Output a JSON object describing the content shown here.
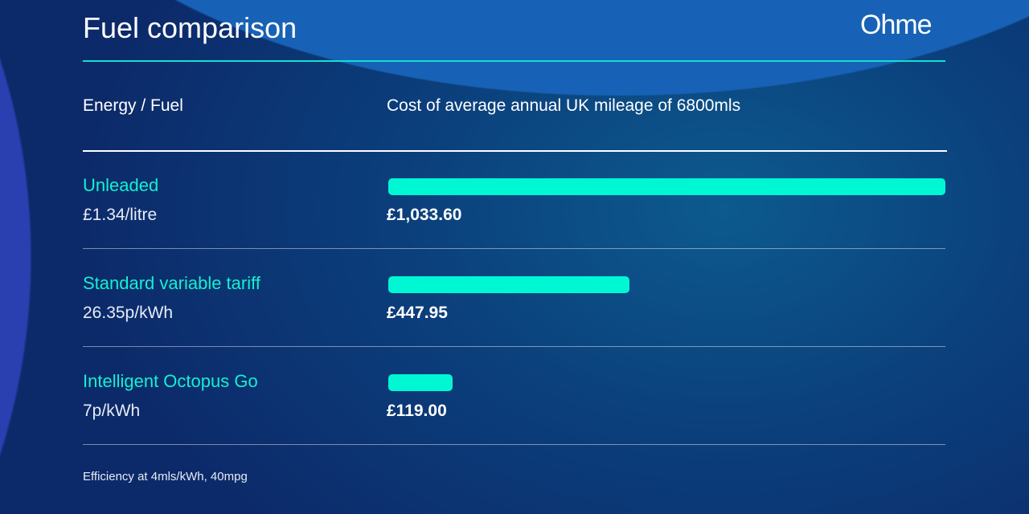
{
  "title": "Fuel comparison",
  "logo": "Ohme",
  "colors": {
    "accent": "#00f7d4",
    "background": "#0d2a6e"
  },
  "chart_data": {
    "type": "bar",
    "orientation": "horizontal",
    "column_headers": [
      "Energy / Fuel",
      "Cost of average annual UK mileage of 6800mls"
    ],
    "categories": [
      "Unleaded",
      "Standard variable tariff",
      "Intelligent Octopus Go"
    ],
    "rates": [
      "£1.34/litre",
      "26.35p/kWh",
      "7p/kWh"
    ],
    "values": [
      1033.6,
      447.95,
      119.0
    ],
    "value_labels": [
      "£1,033.60",
      "£447.95",
      "£119.00"
    ],
    "footnote": "Efficiency at 4mls/kWh, 40mpg"
  }
}
